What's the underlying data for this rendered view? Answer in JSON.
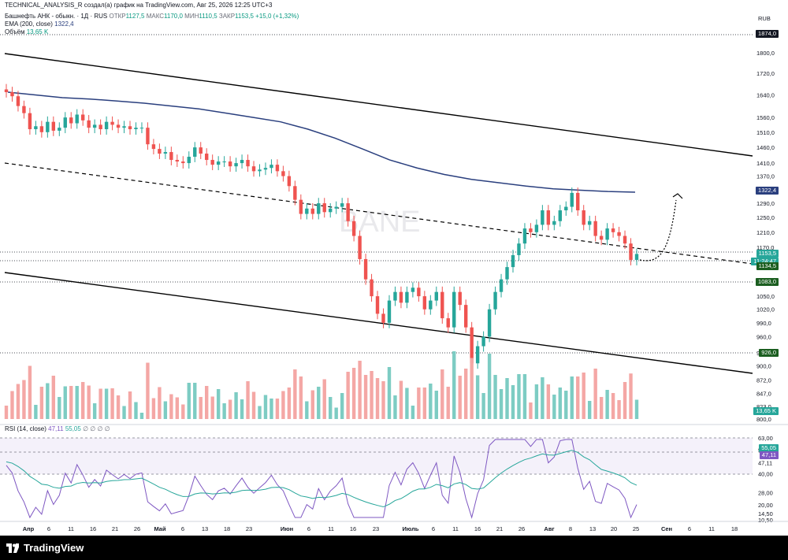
{
  "topbar": {
    "text": "TECHNICAL_ANALYSIS_R создал(а) график на TradingView.com, Авг 25, 2026 12:25 UTC+3"
  },
  "legend": {
    "symbol": "Башнефть АНК - обыкн. · 1Д · RUS",
    "open_label": "ОТКР",
    "open": "1127,5",
    "high_label": "МАКС",
    "high": "1170,0",
    "low_label": "МИН",
    "low": "1110,5",
    "close_label": "ЗАКР",
    "close": "1153,5",
    "change": "+15,0 (+1,32%)",
    "ema_label": "EMA (200, close)",
    "ema_value": "1322,4",
    "volume_label": "Объём",
    "volume_value": "13,65 K"
  },
  "currency": "RUB",
  "watermark": "BANE",
  "tags": {
    "top_level": "1874,0",
    "ema": "1322,4",
    "price": "1153,5",
    "countdown": "11:24:47",
    "level_1134": "1134,5",
    "level_1083": "1083,0",
    "level_926": "926,0",
    "volume": "13,65 K",
    "rsi_ma": "55,05",
    "rsi": "47,11"
  },
  "rsi_legend": {
    "label": "RSI (14, close)",
    "rsi": "47,11",
    "ma": "55,05",
    "extras": "∅ ∅ ∅ ∅"
  },
  "footer": {
    "brand": "TradingView"
  },
  "colors": {
    "up": "#26a69a",
    "down": "#ef5350",
    "ema": "#2a3f7e",
    "rsi": "#7e57c2",
    "rsi_ma": "#26a69a",
    "volume_up": "#7dccc3",
    "volume_down": "#f4a7a5"
  },
  "chart_data": {
    "type": "candlestick",
    "title": "Башнефть АНК - обыкн. · 1Д · RUS",
    "price_axis_ticks": [
      "1874,0",
      "1800,0",
      "1720,0",
      "1640,0",
      "1560,0",
      "1510,0",
      "1460,0",
      "1410,0",
      "1370,0",
      "1330,0",
      "1290,0",
      "1250,0",
      "1210,0",
      "1170,0",
      "1134,5",
      "1083,0",
      "1050,0",
      "1020,0",
      "990,0",
      "960,0",
      "926,0",
      "900,0",
      "872,0",
      "847,0",
      "823,0",
      "800,0"
    ],
    "time_axis_ticks": [
      "Апр",
      "6",
      "11",
      "16",
      "21",
      "26",
      "Май",
      "6",
      "13",
      "18",
      "23",
      "Июн",
      "6",
      "11",
      "16",
      "23",
      "Июль",
      "6",
      "11",
      "16",
      "21",
      "26",
      "Авг",
      "8",
      "13",
      "20",
      "25",
      "Сен",
      "6",
      "11",
      "18"
    ],
    "rsi_axis_ticks": [
      "63,00",
      "55,05",
      "47,11",
      "40,00",
      "28,00",
      "20,00",
      "14,50",
      "10,50"
    ],
    "close_series": [
      1650,
      1635,
      1600,
      1575,
      1520,
      1530,
      1510,
      1545,
      1515,
      1525,
      1560,
      1540,
      1570,
      1550,
      1525,
      1535,
      1520,
      1545,
      1535,
      1525,
      1530,
      1520,
      1525,
      1525,
      1470,
      1455,
      1440,
      1445,
      1420,
      1415,
      1410,
      1430,
      1460,
      1440,
      1420,
      1405,
      1415,
      1415,
      1400,
      1410,
      1420,
      1400,
      1385,
      1390,
      1395,
      1405,
      1385,
      1370,
      1340,
      1300,
      1260,
      1275,
      1260,
      1290,
      1265,
      1275,
      1280,
      1290,
      1240,
      1200,
      1140,
      1090,
      1050,
      1010,
      990,
      1040,
      1060,
      1035,
      1060,
      1070,
      1050,
      1020,
      1040,
      1060,
      1000,
      980,
      1060,
      1030,
      980,
      905,
      940,
      960,
      1020,
      1060,
      1090,
      1120,
      1150,
      1180,
      1220,
      1210,
      1230,
      1270,
      1230,
      1240,
      1270,
      1280,
      1320,
      1270,
      1230,
      1240,
      1200,
      1190,
      1220,
      1210,
      1200,
      1180,
      1138,
      1153
    ],
    "ema200": [
      1650,
      1640,
      1630,
      1625,
      1618,
      1610,
      1600,
      1590,
      1575,
      1560,
      1545,
      1520,
      1490,
      1455,
      1420,
      1395,
      1375,
      1360,
      1350,
      1340,
      1332,
      1328,
      1324,
      1322
    ],
    "annotations": [
      "Projected path to ~1300 (dashed arrow)"
    ]
  }
}
